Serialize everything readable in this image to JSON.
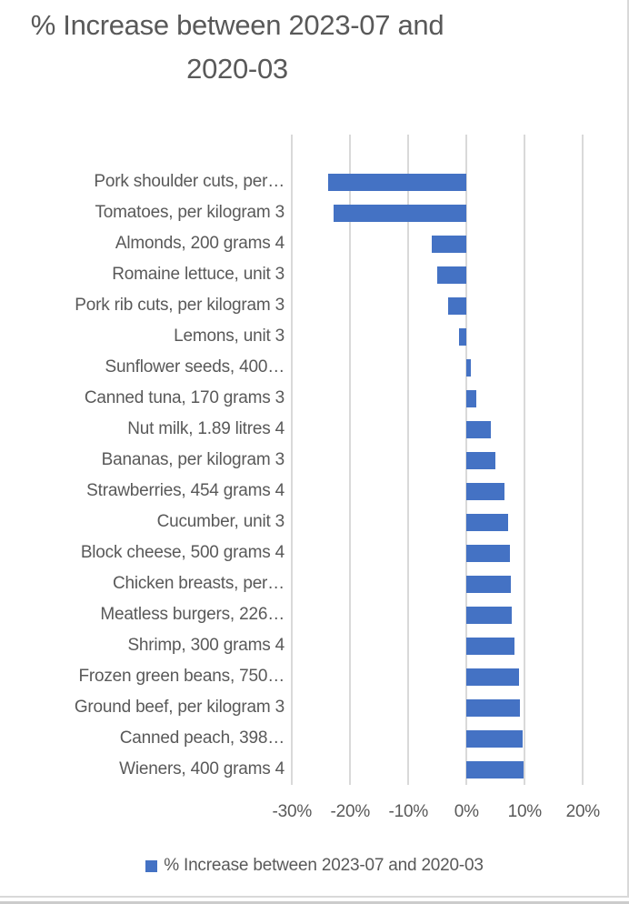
{
  "title": {
    "text": "% Increase between 2023-07 and 2020-03",
    "line1": "% Increase between 2023-07 and",
    "line2": "2020-03"
  },
  "legend": {
    "label": "% Increase between 2023-07 and 2020-03",
    "marker_color": "#4472C4"
  },
  "chart_data": {
    "type": "bar",
    "orientation": "horizontal",
    "title": "% Increase between 2023-07 and 2020-03",
    "series_name": "% Increase between 2023-07 and 2020-03",
    "categories": [
      "Pork shoulder cuts, per…",
      "Tomatoes, per kilogram 3",
      "Almonds, 200 grams 4",
      "Romaine lettuce, unit 3",
      "Pork rib cuts, per kilogram 3",
      "Lemons, unit 3",
      "Sunflower seeds, 400…",
      "Canned tuna, 170 grams 3",
      "Nut milk, 1.89 litres 4",
      "Bananas, per kilogram 3",
      "Strawberries, 454 grams 4",
      "Cucumber, unit 3",
      "Block cheese, 500 grams 4",
      "Chicken breasts, per…",
      "Meatless burgers, 226…",
      "Shrimp, 300 grams 4",
      "Frozen green beans, 750…",
      "Ground beef, per kilogram 3",
      "Canned peach, 398…",
      "Wieners, 400 grams 4"
    ],
    "values": [
      -23.8,
      -22.9,
      -6.0,
      -5.1,
      -3.2,
      -1.3,
      0.7,
      1.7,
      4.2,
      5.0,
      6.5,
      7.2,
      7.5,
      7.6,
      7.8,
      8.2,
      9.0,
      9.2,
      9.6,
      9.8
    ],
    "value_unit": "%",
    "x_axis": {
      "ticks": [
        "-30%",
        "-20%",
        "-10%",
        "0%",
        "10%",
        "20%"
      ],
      "tick_values": [
        -30,
        -20,
        -10,
        0,
        10,
        20
      ],
      "min": -30,
      "max": 20
    },
    "grid": true,
    "legend_position": "bottom",
    "colors": {
      "bar": "#4472C4",
      "gridline": "#D9D9D9",
      "text": "#595959"
    }
  }
}
